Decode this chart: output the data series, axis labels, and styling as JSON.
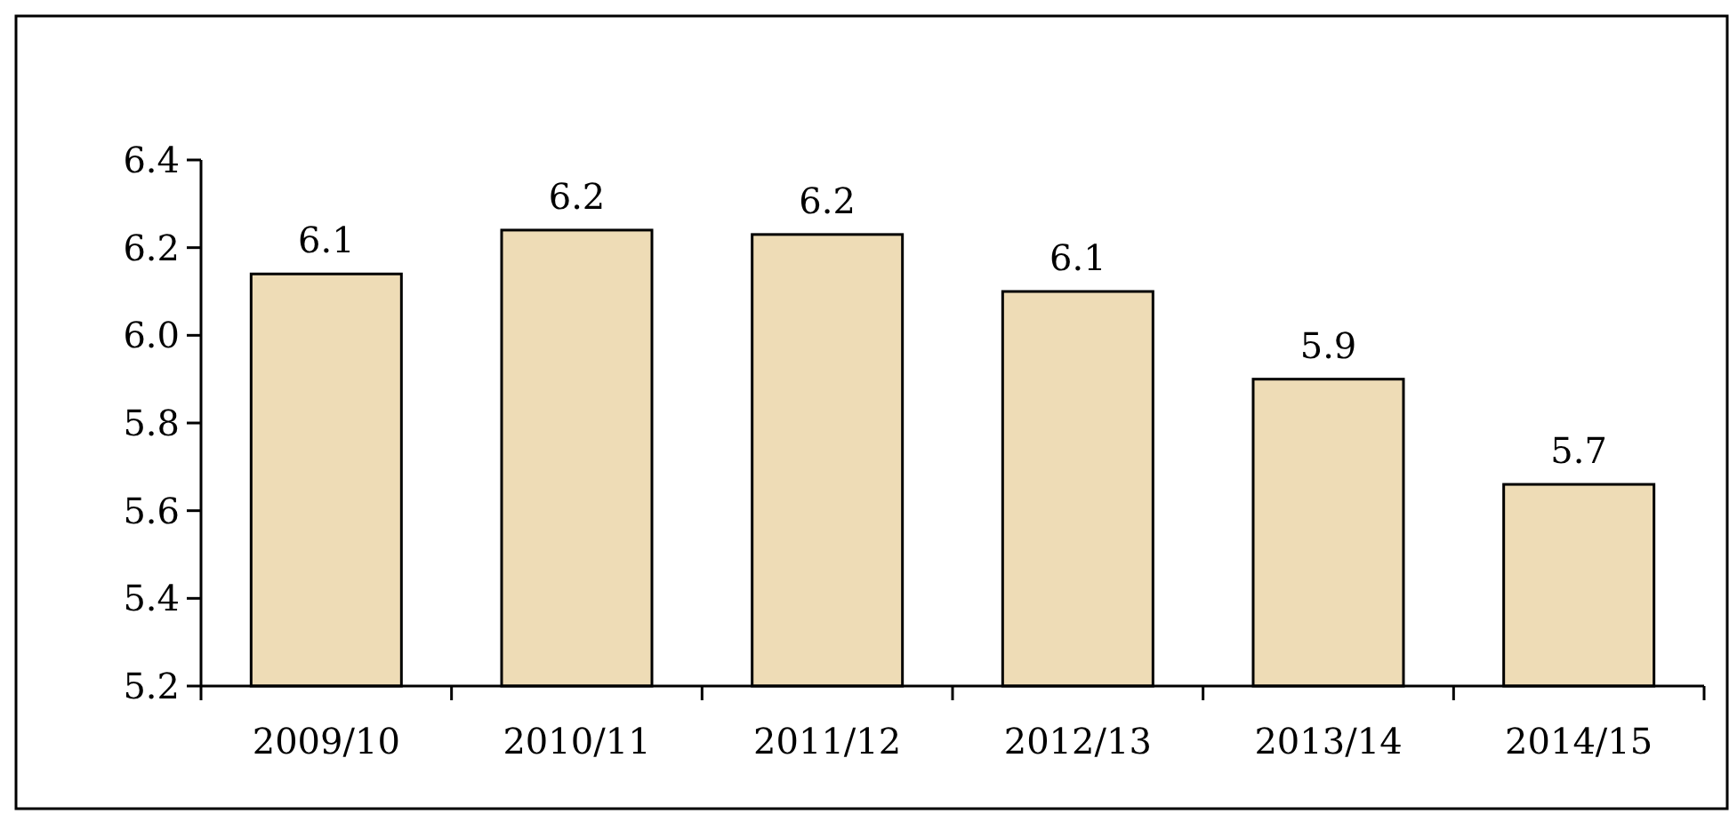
{
  "chart_data": {
    "type": "bar",
    "categories": [
      "2009/10",
      "2010/11",
      "2011/12",
      "2012/13",
      "2013/14",
      "2014/15"
    ],
    "values": [
      6.14,
      6.24,
      6.23,
      6.1,
      5.9,
      5.66
    ],
    "value_labels": [
      "6.1",
      "6.2",
      "6.2",
      "6.1",
      "5.9",
      "5.7"
    ],
    "color": "#eedcb6",
    "ylim": [
      5.2,
      6.4
    ],
    "yticks": [
      "5.2",
      "5.4",
      "5.6",
      "5.8",
      "6.0",
      "6.2",
      "6.4"
    ],
    "grid": false
  }
}
